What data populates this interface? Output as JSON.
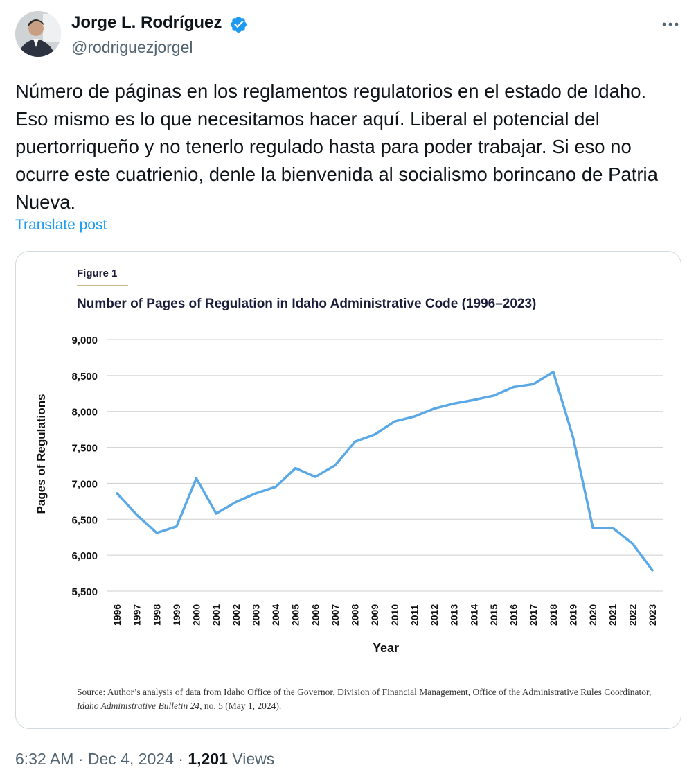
{
  "tweet": {
    "author_name": "Jorge L. Rodríguez",
    "author_handle": "@rodriguezjorgel",
    "text": "Número de páginas en los reglamentos regulatorios en el estado de Idaho. Eso mismo es lo que necesitamos hacer aquí. Liberal el potencial del puertorriqueño y no tenerlo regulado hasta para poder trabajar. Si eso no ocurre este cuatrienio, denle la bienvenida al socialismo borincano de Patria Nueva.",
    "translate_label": "Translate post",
    "time": "6:32 AM",
    "separator": "·",
    "date": "Dec 4, 2024",
    "views_count": "1,201",
    "views_label": "Views",
    "icons": {
      "verified": "verified-badge-icon",
      "more": "more-options-icon"
    },
    "colors": {
      "link": "#1d9bf0",
      "secondary_text": "#536471"
    }
  },
  "figure": {
    "label": "Figure 1",
    "source_prefix": "Source: Author’s analysis of data from Idaho Office of the Governor, Division of Financial Management, Office of the Administrative Rules Coordinator, ",
    "source_publication": "Idaho Administrative Bulletin 24",
    "source_suffix": ", no. 5 (May 1, 2024)."
  },
  "chart_data": {
    "type": "line",
    "title": "Number of Pages of Regulation in Idaho Administrative Code (1996–2023)",
    "xlabel": "Year",
    "ylabel": "Pages of Regulations",
    "ylim": [
      5500,
      9000
    ],
    "yticks": [
      "5,500",
      "6,000",
      "6,500",
      "7,000",
      "7,500",
      "8,000",
      "8,500",
      "9,000"
    ],
    "ytick_values": [
      5500,
      6000,
      6500,
      7000,
      7500,
      8000,
      8500,
      9000
    ],
    "grid": true,
    "line_color": "#5aa9e6",
    "categories": [
      "1996",
      "1997",
      "1998",
      "1999",
      "2000",
      "2001",
      "2002",
      "2003",
      "2004",
      "2005",
      "2006",
      "2007",
      "2008",
      "2009",
      "2010",
      "2011",
      "2012",
      "2013",
      "2014",
      "2015",
      "2016",
      "2017",
      "2018",
      "2019",
      "2020",
      "2021",
      "2022",
      "2023"
    ],
    "values": [
      6860,
      6560,
      6310,
      6400,
      7070,
      6580,
      6740,
      6860,
      6950,
      7210,
      7090,
      7250,
      7580,
      7680,
      7860,
      7930,
      8040,
      8110,
      8160,
      8220,
      8340,
      8380,
      8550,
      7640,
      6380,
      6380,
      6160,
      5790
    ]
  }
}
